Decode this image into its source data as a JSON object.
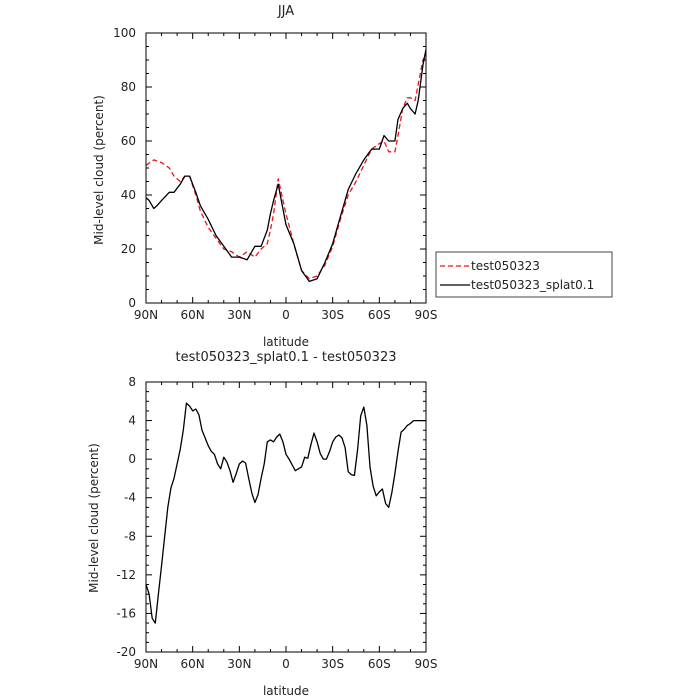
{
  "chart_data": [
    {
      "type": "line",
      "title": "JJA",
      "xlabel": "latitude",
      "ylabel": "Mid-level cloud (percent)",
      "xlim": [
        -90,
        90
      ],
      "ylim": [
        0,
        100
      ],
      "x_ticks": [
        -90,
        -60,
        -30,
        0,
        30,
        60,
        90
      ],
      "x_tick_labels": [
        "90N",
        "60N",
        "30N",
        "0",
        "30S",
        "60S",
        "90S"
      ],
      "y_ticks": [
        0,
        20,
        40,
        60,
        80,
        100
      ],
      "y_tick_labels": [
        "0",
        "20",
        "40",
        "60",
        "80",
        "100"
      ],
      "legend_position": "right",
      "series": [
        {
          "name": "test050323",
          "color": "#e8141c",
          "dash": "dashed",
          "x": [
            -90,
            -85,
            -80,
            -75,
            -72,
            -68,
            -65,
            -62,
            -58,
            -55,
            -50,
            -45,
            -40,
            -35,
            -30,
            -25,
            -20,
            -16,
            -12,
            -10,
            -8,
            -5,
            0,
            5,
            10,
            15,
            20,
            25,
            30,
            35,
            40,
            45,
            50,
            55,
            60,
            63,
            66,
            70,
            72,
            75,
            78,
            80,
            83,
            85,
            88,
            90
          ],
          "values": [
            51,
            53,
            52,
            50,
            47,
            45,
            47,
            47,
            40,
            34,
            28,
            24,
            20,
            19,
            17,
            19,
            17,
            20,
            22,
            27,
            33,
            46,
            33,
            22,
            12,
            9,
            10,
            14,
            21,
            31,
            40,
            45,
            51,
            57,
            59,
            60,
            56,
            56,
            62,
            72,
            76,
            76,
            75,
            81,
            90,
            92
          ]
        },
        {
          "name": "test050323_splat0.1",
          "color": "#000000",
          "dash": "solid",
          "x": [
            -90,
            -88,
            -85,
            -83,
            -80,
            -75,
            -72,
            -68,
            -65,
            -62,
            -58,
            -55,
            -50,
            -45,
            -40,
            -35,
            -30,
            -25,
            -20,
            -16,
            -12,
            -10,
            -8,
            -5,
            0,
            5,
            10,
            15,
            20,
            25,
            30,
            35,
            40,
            45,
            50,
            55,
            60,
            63,
            66,
            70,
            72,
            75,
            78,
            80,
            83,
            85,
            88,
            90
          ],
          "values": [
            39,
            38,
            35,
            36,
            38,
            41,
            41,
            44,
            47,
            47,
            41,
            36,
            31,
            25,
            21,
            17,
            17,
            16,
            21,
            21,
            27,
            33,
            38,
            44,
            29,
            22,
            12,
            8,
            9,
            15,
            22,
            32,
            42,
            48,
            53,
            57,
            57,
            62,
            60,
            60,
            68,
            72,
            74,
            72,
            70,
            75,
            88,
            94
          ]
        }
      ]
    },
    {
      "type": "line",
      "title": "test050323_splat0.1 - test050323",
      "xlabel": "latitude",
      "ylabel": "Mid-level cloud (percent)",
      "xlim": [
        -90,
        90
      ],
      "ylim": [
        -20,
        8
      ],
      "x_ticks": [
        -90,
        -60,
        -30,
        0,
        30,
        60,
        90
      ],
      "x_tick_labels": [
        "90N",
        "60N",
        "30N",
        "0",
        "30S",
        "60S",
        "90S"
      ],
      "y_ticks": [
        -20,
        -16,
        -12,
        -8,
        -4,
        0,
        4,
        8
      ],
      "y_tick_labels": [
        "-20",
        "-16",
        "-12",
        "-8",
        "-4",
        "0",
        "4",
        "8"
      ],
      "series": [
        {
          "color": "#000000",
          "dash": "solid",
          "x": [
            -90,
            -88,
            -86,
            -84,
            -82,
            -80,
            -78,
            -76,
            -74,
            -72,
            -70,
            -68,
            -66,
            -64,
            -62,
            -60,
            -58,
            -56,
            -54,
            -52,
            -50,
            -48,
            -46,
            -44,
            -42,
            -40,
            -38,
            -36,
            -34,
            -32,
            -30,
            -28,
            -26,
            -24,
            -22,
            -20,
            -18,
            -16,
            -14,
            -12,
            -10,
            -8,
            -6,
            -4,
            -2,
            0,
            2,
            4,
            6,
            8,
            10,
            12,
            14,
            16,
            18,
            20,
            22,
            24,
            26,
            28,
            30,
            32,
            34,
            36,
            38,
            40,
            42,
            44,
            46,
            48,
            50,
            52,
            54,
            56,
            58,
            60,
            62,
            64,
            66,
            68,
            70,
            72,
            74,
            76,
            78,
            80,
            82,
            84,
            86,
            88,
            90
          ],
          "values": [
            -13,
            -14,
            -16.5,
            -17,
            -14,
            -11,
            -8,
            -5,
            -3,
            -2,
            -0.5,
            1,
            3,
            5.8,
            5.5,
            5,
            5.2,
            4.6,
            3,
            2.2,
            1.4,
            0.8,
            0.5,
            -0.5,
            -1,
            0.2,
            -0.3,
            -1.2,
            -2.4,
            -1.5,
            -0.5,
            -0.2,
            -0.4,
            -2,
            -3.5,
            -4.5,
            -3.7,
            -2,
            -0.5,
            1.8,
            2,
            1.8,
            2.3,
            2.6,
            1.8,
            0.5,
            0,
            -0.6,
            -1.2,
            -1,
            -0.8,
            0.2,
            0.1,
            1.5,
            2.7,
            1.8,
            0.6,
            0,
            0,
            0.8,
            1.8,
            2.3,
            2.5,
            2.2,
            1.2,
            -1.3,
            -1.6,
            -1.7,
            1,
            4.5,
            5.4,
            3.5,
            -0.8,
            -2.8,
            -3.8,
            -3.4,
            -3.1,
            -4.6,
            -5,
            -3.5,
            -1.5,
            0.8,
            2.8,
            3.1,
            3.5,
            3.7,
            4,
            4,
            4,
            4,
            4
          ]
        }
      ]
    }
  ]
}
